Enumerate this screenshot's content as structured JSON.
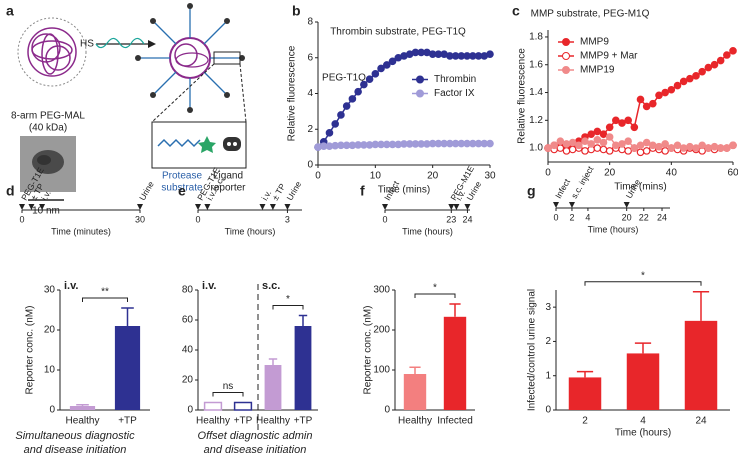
{
  "panel_a": {
    "letter": "a",
    "reagent": "HS",
    "name": "8-arm PEG-MAL",
    "mass": "(40 kDa)",
    "scale_bar": "10 nm",
    "substrate": [
      "Protease",
      "substrate"
    ],
    "reporter": [
      "Ligand",
      "reporter"
    ]
  },
  "chart_data": [
    {
      "type": "line",
      "letter": "b",
      "title": "Thrombin substrate, PEG-T1Q",
      "annotation": "PEG-T1Q",
      "xlabel": "Time (mins)",
      "ylabel": "Relative fluorescence",
      "legend": "right",
      "x": [
        0,
        1,
        2,
        3,
        4,
        5,
        6,
        7,
        8,
        9,
        10,
        11,
        12,
        13,
        14,
        15,
        16,
        17,
        18,
        19,
        20,
        21,
        22,
        23,
        24,
        25,
        26,
        27,
        28,
        29,
        30
      ],
      "xlim": [
        0,
        30
      ],
      "xticks": [
        0,
        10,
        20,
        30
      ],
      "ylim": [
        0,
        8
      ],
      "yticks": [
        0,
        2,
        4,
        6,
        8
      ],
      "series": [
        {
          "name": "Thrombin",
          "color": "#2e3192",
          "values": [
            1.0,
            1.3,
            1.8,
            2.3,
            2.8,
            3.3,
            3.7,
            4.1,
            4.5,
            4.8,
            5.1,
            5.4,
            5.6,
            5.8,
            6.0,
            6.1,
            6.2,
            6.3,
            6.3,
            6.3,
            6.2,
            6.2,
            6.2,
            6.1,
            6.1,
            6.1,
            6.1,
            6.1,
            6.1,
            6.1,
            6.2
          ]
        },
        {
          "name": "Factor IX",
          "color": "#a09bd8",
          "values": [
            1.0,
            1.05,
            1.05,
            1.08,
            1.1,
            1.1,
            1.1,
            1.12,
            1.12,
            1.12,
            1.15,
            1.15,
            1.15,
            1.15,
            1.15,
            1.18,
            1.18,
            1.18,
            1.18,
            1.18,
            1.2,
            1.2,
            1.2,
            1.2,
            1.2,
            1.2,
            1.2,
            1.2,
            1.2,
            1.2,
            1.2
          ]
        }
      ]
    },
    {
      "type": "line",
      "letter": "c",
      "title": "MMP substrate, PEG-M1Q",
      "xlabel": "Time (mins)",
      "ylabel": "Relative fluorescence",
      "legend": "upper left",
      "x": [
        0,
        2,
        4,
        6,
        8,
        10,
        12,
        14,
        16,
        18,
        20,
        22,
        24,
        26,
        28,
        30,
        32,
        34,
        36,
        38,
        40,
        42,
        44,
        46,
        48,
        50,
        52,
        54,
        56,
        58,
        60
      ],
      "xlim": [
        0,
        60
      ],
      "xticks": [
        0,
        20,
        40,
        60
      ],
      "ylim": [
        0.9,
        1.85
      ],
      "yticks": [
        {
          "value": 1,
          "label": "1.0"
        },
        {
          "value": 1.2,
          "label": "1.2"
        },
        {
          "value": 1.4,
          "label": "1.4"
        },
        {
          "value": 1.6,
          "label": "1.6"
        },
        {
          "value": 1.8,
          "label": "1.8"
        }
      ],
      "series": [
        {
          "name": "MMP9",
          "color": "#e8262a",
          "marker": "filled",
          "values": [
            1.0,
            1.02,
            1.01,
            1.0,
            1.0,
            1.05,
            1.08,
            1.1,
            1.12,
            1.1,
            1.15,
            1.2,
            1.18,
            1.2,
            1.15,
            1.35,
            1.3,
            1.32,
            1.38,
            1.4,
            1.42,
            1.45,
            1.48,
            1.5,
            1.52,
            1.55,
            1.58,
            1.6,
            1.63,
            1.67,
            1.7
          ]
        },
        {
          "name": "MMP9 + Mar",
          "color": "#e8262a",
          "marker": "open",
          "values": [
            1.0,
            0.99,
            1.0,
            0.98,
            0.99,
            1.0,
            0.98,
            0.99,
            1.0,
            0.99,
            0.98,
            1.0,
            0.99,
            0.98,
            1.0,
            0.97,
            0.98,
            1.0,
            0.99,
            0.98,
            1.0,
            0.99,
            0.98,
            1.0,
            0.99,
            0.98,
            1.0,
            0.99,
            1.0,
            1.0,
            1.02
          ]
        },
        {
          "name": "MMP19",
          "color": "#f08a8a",
          "marker": "filled",
          "values": [
            1.0,
            1.02,
            1.05,
            1.03,
            1.04,
            1.02,
            1.05,
            1.03,
            1.06,
            1.04,
            1.08,
            1.02,
            1.03,
            1.05,
            1.0,
            1.02,
            1.04,
            1.02,
            1.01,
            1.03,
            1.0,
            1.02,
            1.0,
            1.01,
            1.0,
            1.02,
            1.0,
            1.01,
            1.0,
            1.0,
            1.02
          ]
        }
      ]
    },
    {
      "type": "bar",
      "letter": "d",
      "ylabel": "Reporter conc. (nM)",
      "ylim": [
        0,
        30
      ],
      "yticks": [
        0,
        10,
        20,
        30
      ],
      "timeline": {
        "events": [
          "PEG-T1E",
          "± TP",
          "i.v.",
          "Urine"
        ],
        "ticks": [
          0,
          30
        ],
        "xlabel": "Time (minutes)"
      },
      "groups": [
        {
          "label": "i.v.",
          "significance": "**",
          "categories": [
            "Healthy",
            "+TP"
          ],
          "values": [
            1,
            21
          ],
          "errors": [
            0.3,
            4.5
          ],
          "colors": [
            "#c39bd3",
            "#2e3192"
          ]
        }
      ],
      "caption": [
        "Simultaneous diagnostic",
        "and disease initiation"
      ]
    },
    {
      "type": "bar",
      "letter": "e",
      "ylim": [
        0,
        80
      ],
      "yticks": [
        0,
        20,
        40,
        60,
        80
      ],
      "timeline": {
        "events": [
          "PEG-T1E",
          "i.v./s.c.",
          "i.v.",
          "± TP",
          "Urine"
        ],
        "ticks": [
          0,
          3
        ],
        "xlabel": "Time (hours)"
      },
      "groups": [
        {
          "label": "i.v.",
          "significance": "ns",
          "style": "outline",
          "categories": [
            "Healthy",
            "+TP"
          ],
          "values": [
            5,
            5
          ],
          "colors": [
            "#c39bd3",
            "#2e3192"
          ]
        },
        {
          "label": "s.c.",
          "significance": "*",
          "categories": [
            "Healthy",
            "+TP"
          ],
          "values": [
            30,
            56
          ],
          "errors": [
            4,
            7
          ],
          "colors": [
            "#c39bd3",
            "#2e3192"
          ]
        }
      ],
      "caption": [
        "Offset diagnostic admin",
        "and disease initiation"
      ]
    },
    {
      "type": "bar",
      "letter": "f",
      "ylabel": "Reporter conc. (nM)",
      "ylim": [
        0,
        300
      ],
      "yticks": [
        0,
        100,
        200,
        300
      ],
      "timeline": {
        "events": [
          "Infect",
          "PEG-M1E",
          "i.v.",
          "Urine"
        ],
        "ticks": [
          0,
          23,
          24
        ],
        "xlabel": "Time (hours)"
      },
      "groups": [
        {
          "significance": "*",
          "categories": [
            "Healthy",
            "Infected"
          ],
          "values": [
            90,
            233
          ],
          "errors": [
            17,
            32
          ],
          "colors": [
            "#f37f7f",
            "#e8262a"
          ]
        }
      ]
    },
    {
      "type": "bar",
      "letter": "g",
      "ylabel": "Infected/control urine signal",
      "xlabel": "Time (hours)",
      "ylim": [
        0,
        3.5
      ],
      "yticks": [
        0,
        1,
        2,
        3
      ],
      "timeline": {
        "events": [
          "Infect",
          "s.c. inject",
          "Urine"
        ],
        "ticks": [
          0,
          2,
          4,
          20,
          22,
          24
        ],
        "xlabel": "Time (hours)"
      },
      "groups": [
        {
          "significance": "*",
          "categories": [
            "2",
            "4",
            "24"
          ],
          "values": [
            0.95,
            1.65,
            2.6
          ],
          "errors": [
            0.17,
            0.3,
            0.85
          ],
          "colors": [
            "#e8262a",
            "#e8262a",
            "#e8262a"
          ]
        }
      ]
    }
  ]
}
